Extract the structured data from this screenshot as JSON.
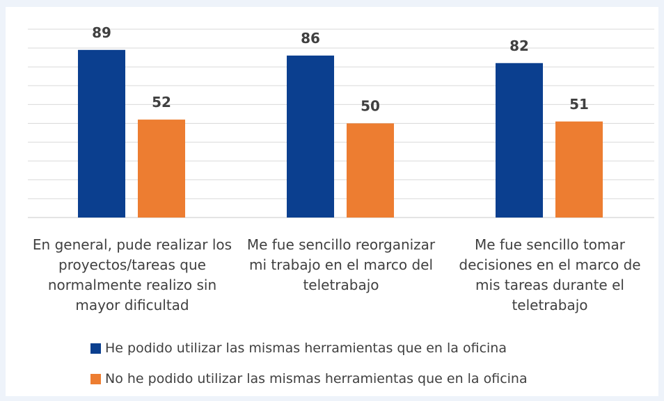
{
  "chart_data": {
    "type": "bar",
    "categories": [
      "En general, pude realizar los proyectos/tareas que normalmente realizo sin mayor dificultad",
      "Me fue sencillo reorganizar mi trabajo en el marco del teletrabajo",
      "Me fue sencillo tomar decisiones en el marco de mis tareas durante el teletrabajo"
    ],
    "series": [
      {
        "name": "He podido utilizar las mismas herramientas que en la oficina",
        "color": "#0b3f8f",
        "values": [
          89,
          86,
          82
        ]
      },
      {
        "name": "No he podido utilizar las mismas herramientas que en la oficina",
        "color": "#ed7d31",
        "values": [
          52,
          50,
          51
        ]
      }
    ],
    "ylim": [
      0,
      100
    ],
    "yticks": [
      0,
      10,
      20,
      30,
      40,
      50,
      60,
      70,
      80,
      90,
      100
    ],
    "grid": true,
    "legend": "bottom"
  }
}
